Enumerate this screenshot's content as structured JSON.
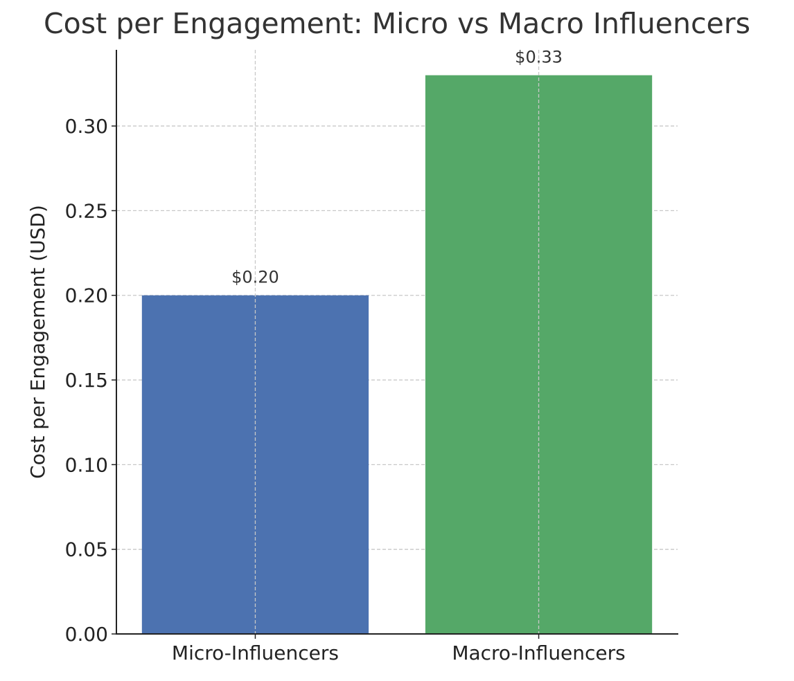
{
  "chart_data": {
    "type": "bar",
    "title": "Cost per Engagement: Micro vs Macro Influencers",
    "xlabel": "",
    "ylabel": "Cost per Engagement (USD)",
    "categories": [
      "Micro-Influencers",
      "Macro-Influencers"
    ],
    "values": [
      0.2,
      0.33
    ],
    "data_labels": [
      "$0.20",
      "$0.33"
    ],
    "colors": [
      "#4c72b0",
      "#55a868"
    ],
    "ylim": [
      0,
      0.345
    ],
    "xlim": [
      -0.49,
      1.49
    ],
    "yticks": [
      0.0,
      0.05,
      0.1,
      0.15,
      0.2,
      0.25,
      0.3
    ],
    "ytick_labels": [
      "0.00",
      "0.05",
      "0.10",
      "0.15",
      "0.20",
      "0.25",
      "0.30"
    ],
    "grid": true,
    "legend": "none"
  }
}
